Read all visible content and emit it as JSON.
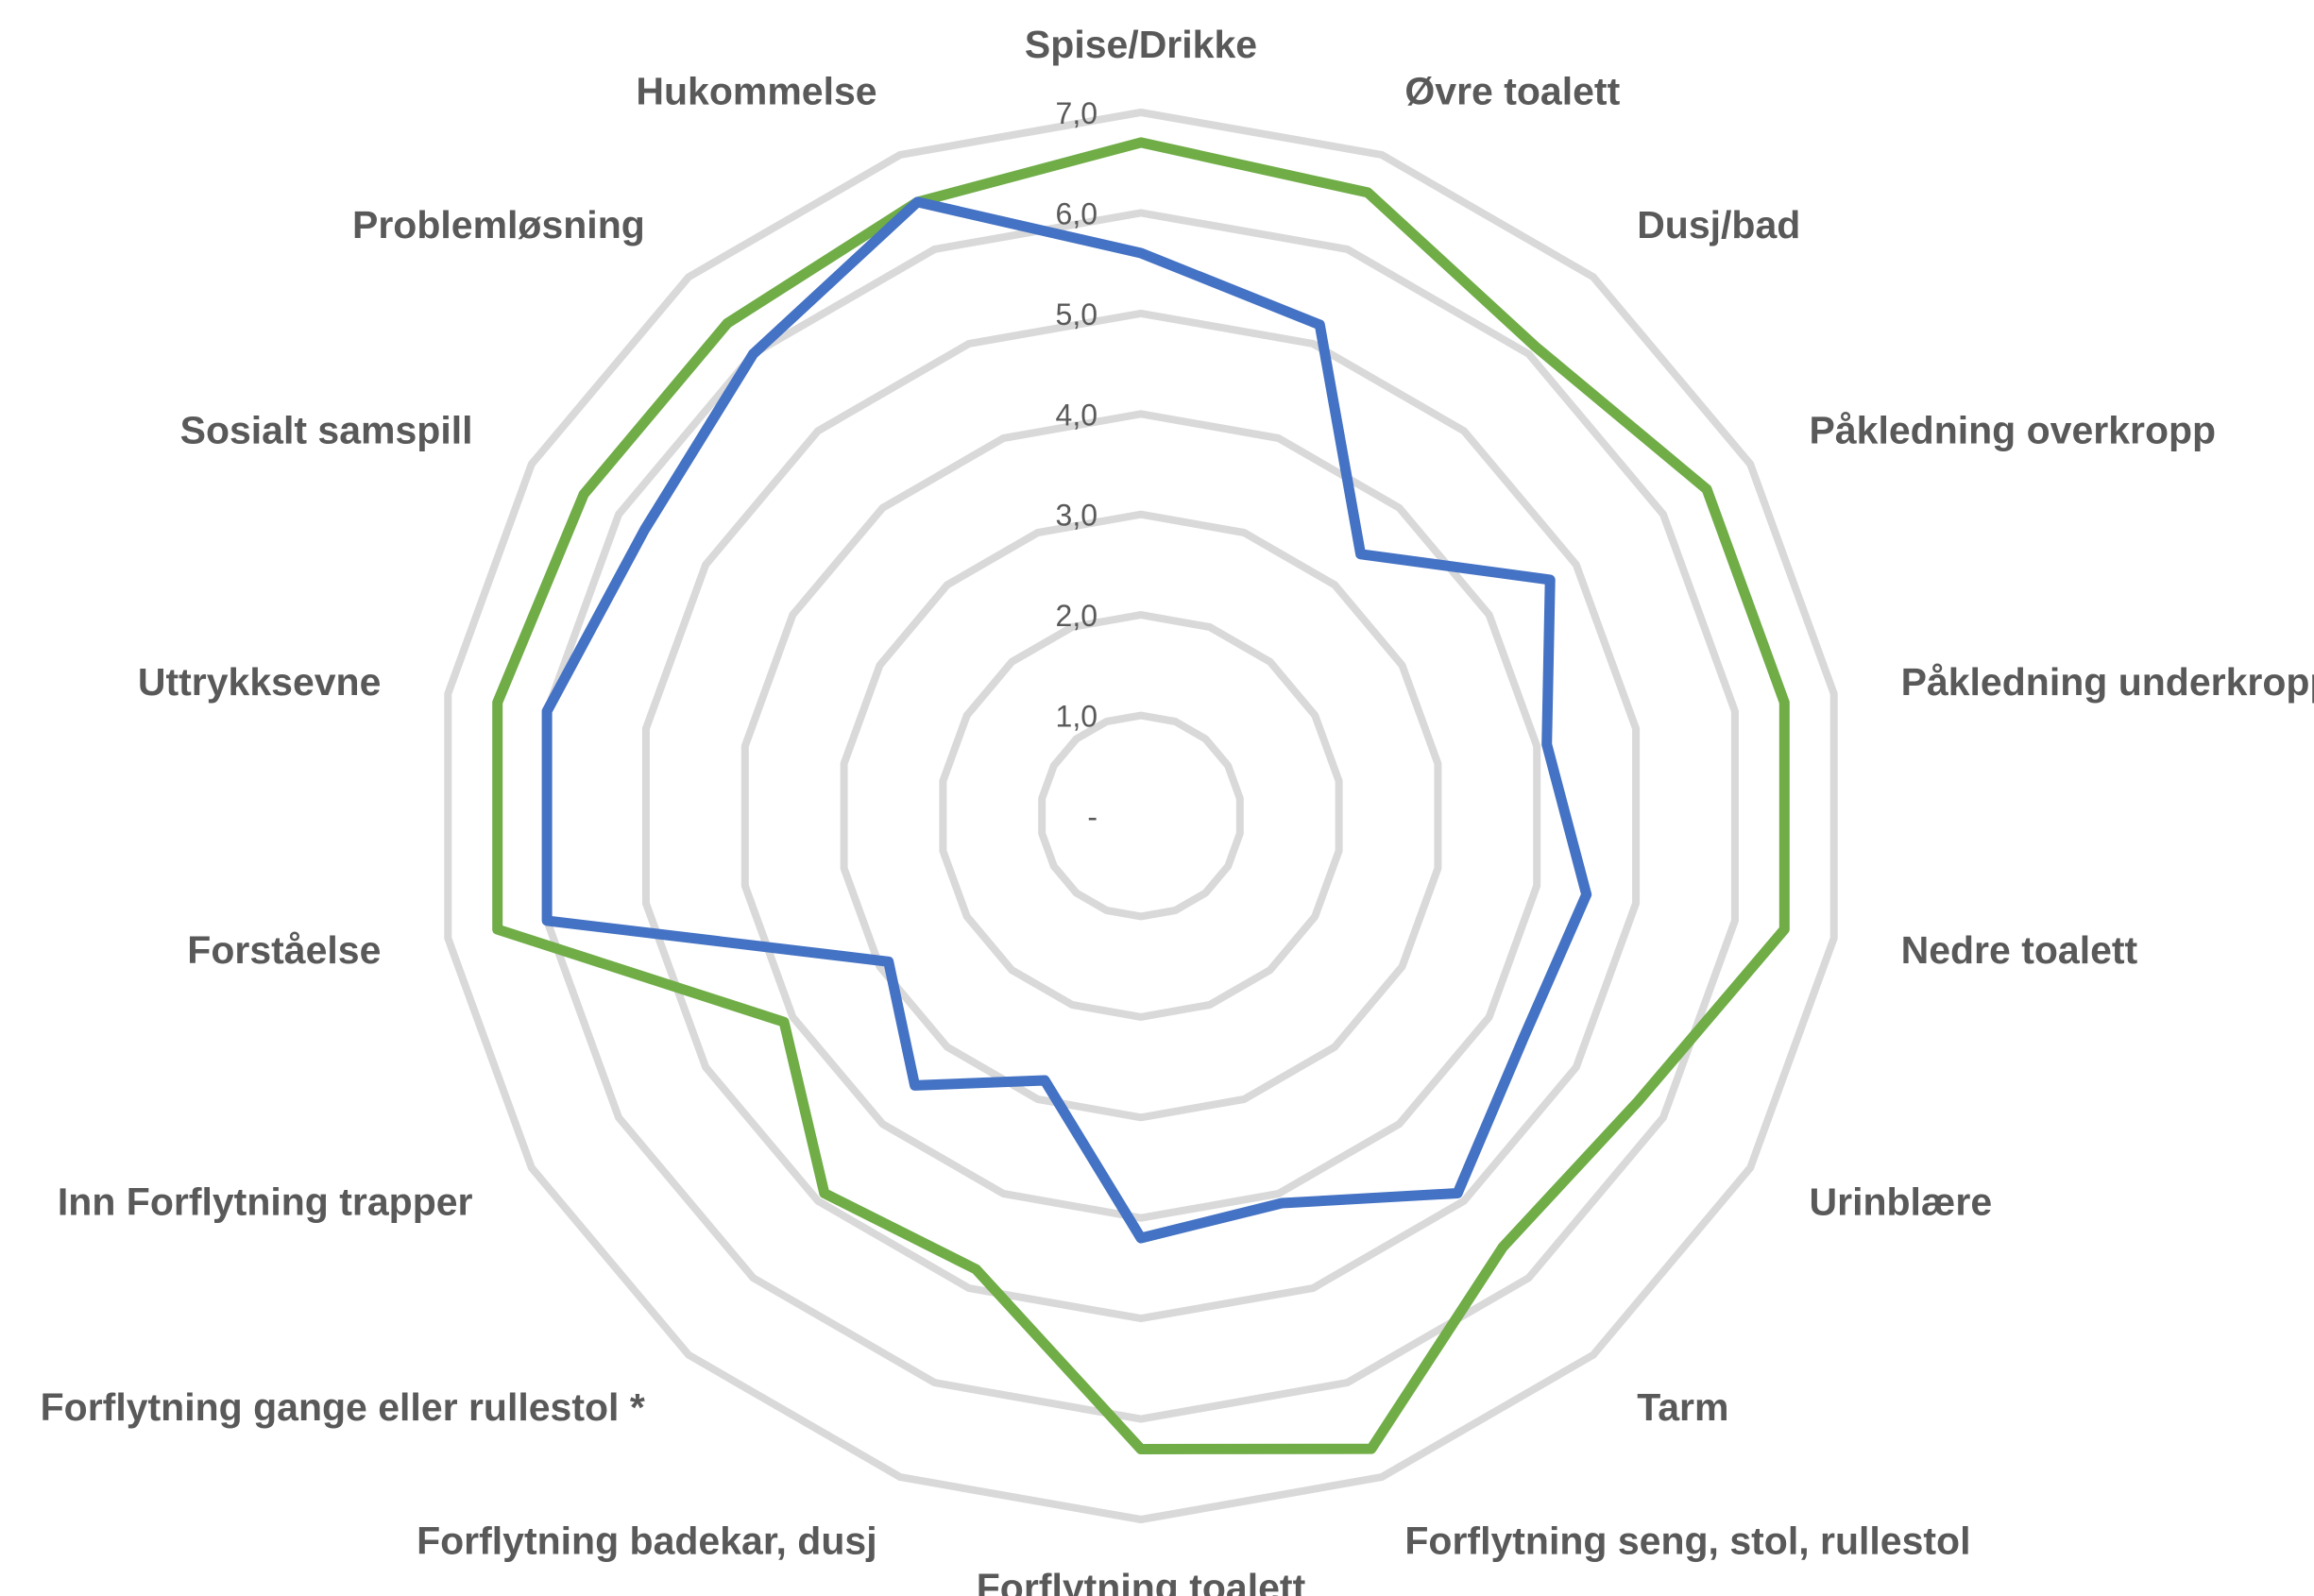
{
  "chart_data": {
    "type": "radar",
    "title": "",
    "categories": [
      "Spise/Drikke",
      "Øvre toalett",
      "Dusj/bad",
      "Påkledning overkropp",
      "Påkledning underkropp",
      "Nedre toalett",
      "Urinblære",
      "Tarm",
      "Forflytning seng, stol, rullestol",
      "Forflytning toalett",
      "Forflytning badekar, dusj",
      "Forflytning gange eller rullestol *",
      "Inn Forflytning trapper",
      "Forståelse",
      "Uttrykksevne",
      "Sosialt samspill",
      "Problemløsning",
      "Hukommelse"
    ],
    "rlim": [
      0,
      7
    ],
    "ticks": [
      "-",
      "1,0",
      "2,0",
      "3,0",
      "4,0",
      "5,0",
      "6,0",
      "7,0"
    ],
    "grid": true,
    "legend": "none",
    "series": [
      {
        "color": "#70ad47",
        "values": [
          6.7,
          6.6,
          6.1,
          6.5,
          6.5,
          6.5,
          5.7,
          5.6,
          6.7,
          6.3,
          4.8,
          4.9,
          4.1,
          6.5,
          6.5,
          6.4,
          6.4,
          6.5
        ]
      },
      {
        "color": "#4472c4",
        "values": [
          5.6,
          5.2,
          3.4,
          4.7,
          4.1,
          4.5,
          4.4,
          4.9,
          4.1,
          4.2,
          2.8,
          3.5,
          2.9,
          6.0,
          6.0,
          5.7,
          6.0,
          6.5
        ]
      }
    ]
  }
}
